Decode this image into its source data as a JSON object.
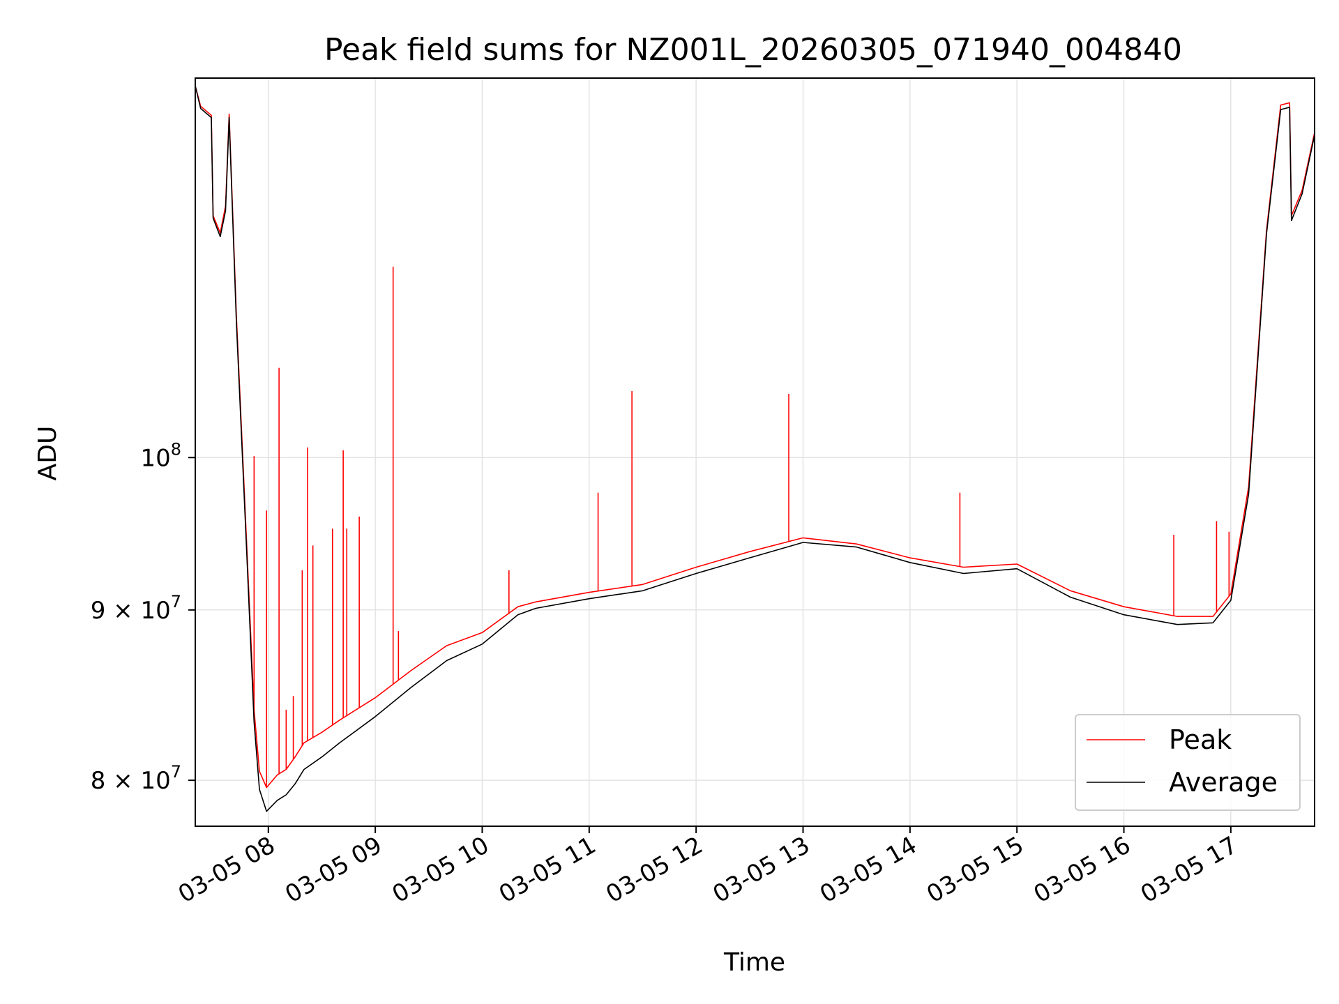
{
  "chart_data": {
    "type": "line",
    "title": "Peak field sums for NZ001L_20260305_071940_004840",
    "xlabel": "Time",
    "ylabel": "ADU",
    "yscale": "log",
    "ylim": [
      77500000,
      130000000
    ],
    "xlim": [
      "03-05 07:19",
      "03-05 17:47"
    ],
    "grid": true,
    "legend_position": "lower right",
    "x_ticks": [
      "03-05 08",
      "03-05 09",
      "03-05 10",
      "03-05 11",
      "03-05 12",
      "03-05 13",
      "03-05 14",
      "03-05 15",
      "03-05 16",
      "03-05 17"
    ],
    "y_ticks": [
      {
        "value": 100000000,
        "base": "10",
        "exp": "8"
      },
      {
        "value": 90000000,
        "base": "9 × 10",
        "exp": "7"
      },
      {
        "value": 80000000,
        "base": "8 × 10",
        "exp": "7"
      }
    ],
    "series": [
      {
        "name": "Peak",
        "color": "#ff0000",
        "x": [
          "03-05 07:19",
          "03-05 07:22",
          "03-05 07:28",
          "03-05 07:29",
          "03-05 07:33",
          "03-05 07:36",
          "03-05 07:38",
          "03-05 07:42",
          "03-05 07:48",
          "03-05 07:52",
          "03-05 07:55",
          "03-05 07:59",
          "03-05 08:05",
          "03-05 08:10",
          "03-05 08:15",
          "03-05 08:20",
          "03-05 08:30",
          "03-05 08:40",
          "03-05 09:00",
          "03-05 09:20",
          "03-05 09:40",
          "03-05 10:00",
          "03-05 10:20",
          "03-05 10:30",
          "03-05 11:00",
          "03-05 11:30",
          "03-05 12:00",
          "03-05 12:30",
          "03-05 13:00",
          "03-05 13:30",
          "03-05 14:00",
          "03-05 14:30",
          "03-05 15:00",
          "03-05 15:30",
          "03-05 16:00",
          "03-05 16:30",
          "03-05 16:50",
          "03-05 17:00",
          "03-05 17:10",
          "03-05 17:20",
          "03-05 17:28",
          "03-05 17:33",
          "03-05 17:34",
          "03-05 17:40",
          "03-05 17:47"
        ],
        "y": [
          129300000,
          127500000,
          126700000,
          118200000,
          116800000,
          119000000,
          126800000,
          110500000,
          93800000,
          84000000,
          80500000,
          79600000,
          80300000,
          80600000,
          81300000,
          82100000,
          82700000,
          83400000,
          84700000,
          86300000,
          87800000,
          88600000,
          90200000,
          90500000,
          91100000,
          91600000,
          92700000,
          93700000,
          94600000,
          94200000,
          93300000,
          92700000,
          92900000,
          91200000,
          90200000,
          89600000,
          89600000,
          91000000,
          98000000,
          117000000,
          127600000,
          127800000,
          118200000,
          120300000,
          125200000
        ]
      },
      {
        "name": "Average",
        "color": "#000000",
        "x": [
          "03-05 07:19",
          "03-05 07:22",
          "03-05 07:28",
          "03-05 07:29",
          "03-05 07:33",
          "03-05 07:36",
          "03-05 07:38",
          "03-05 07:42",
          "03-05 07:48",
          "03-05 07:52",
          "03-05 07:55",
          "03-05 07:59",
          "03-05 08:05",
          "03-05 08:10",
          "03-05 08:15",
          "03-05 08:20",
          "03-05 08:30",
          "03-05 08:40",
          "03-05 09:00",
          "03-05 09:20",
          "03-05 09:40",
          "03-05 10:00",
          "03-05 10:20",
          "03-05 10:30",
          "03-05 11:00",
          "03-05 11:30",
          "03-05 12:00",
          "03-05 12:30",
          "03-05 13:00",
          "03-05 13:30",
          "03-05 14:00",
          "03-05 14:30",
          "03-05 15:00",
          "03-05 15:30",
          "03-05 16:00",
          "03-05 16:30",
          "03-05 16:50",
          "03-05 17:00",
          "03-05 17:10",
          "03-05 17:20",
          "03-05 17:28",
          "03-05 17:33",
          "03-05 17:34",
          "03-05 17:40",
          "03-05 17:47"
        ],
        "y": [
          129300000,
          127300000,
          126500000,
          118000000,
          116500000,
          118600000,
          126500000,
          110000000,
          93300000,
          83300000,
          79500000,
          78300000,
          78900000,
          79200000,
          79800000,
          80600000,
          81300000,
          82100000,
          83600000,
          85300000,
          86900000,
          87900000,
          89700000,
          90100000,
          90700000,
          91200000,
          92300000,
          93300000,
          94300000,
          94000000,
          93000000,
          92300000,
          92600000,
          90800000,
          89700000,
          89100000,
          89200000,
          90600000,
          97500000,
          116700000,
          127200000,
          127400000,
          117800000,
          120000000,
          125000000
        ]
      }
    ],
    "spikes": [
      {
        "series": "Peak",
        "x": "03-05 07:52",
        "y": 100100000
      },
      {
        "series": "Peak",
        "x": "03-05 07:59",
        "y": 96400000
      },
      {
        "series": "Peak",
        "x": "03-05 08:06",
        "y": 106400000
      },
      {
        "series": "Peak",
        "x": "03-05 08:10",
        "y": 84000000
      },
      {
        "series": "Peak",
        "x": "03-05 08:14",
        "y": 84800000
      },
      {
        "series": "Peak",
        "x": "03-05 08:19",
        "y": 92500000
      },
      {
        "series": "Peak",
        "x": "03-05 08:22",
        "y": 100700000
      },
      {
        "series": "Peak",
        "x": "03-05 08:25",
        "y": 94100000
      },
      {
        "series": "Peak",
        "x": "03-05 08:36",
        "y": 95200000
      },
      {
        "series": "Peak",
        "x": "03-05 08:42",
        "y": 100500000
      },
      {
        "series": "Peak",
        "x": "03-05 08:44",
        "y": 95200000
      },
      {
        "series": "Peak",
        "x": "03-05 08:51",
        "y": 96000000
      },
      {
        "series": "Peak",
        "x": "03-05 09:10",
        "y": 114100000
      },
      {
        "series": "Peak",
        "x": "03-05 09:13",
        "y": 88700000
      },
      {
        "series": "Peak",
        "x": "03-05 10:15",
        "y": 92500000
      },
      {
        "series": "Peak",
        "x": "03-05 11:05",
        "y": 97600000
      },
      {
        "series": "Peak",
        "x": "03-05 11:24",
        "y": 104700000
      },
      {
        "series": "Peak",
        "x": "03-05 12:52",
        "y": 104500000
      },
      {
        "series": "Peak",
        "x": "03-05 14:28",
        "y": 97600000
      },
      {
        "series": "Peak",
        "x": "03-05 16:28",
        "y": 94800000
      },
      {
        "series": "Peak",
        "x": "03-05 16:52",
        "y": 95700000
      },
      {
        "series": "Peak",
        "x": "03-05 16:59",
        "y": 95000000
      }
    ]
  }
}
